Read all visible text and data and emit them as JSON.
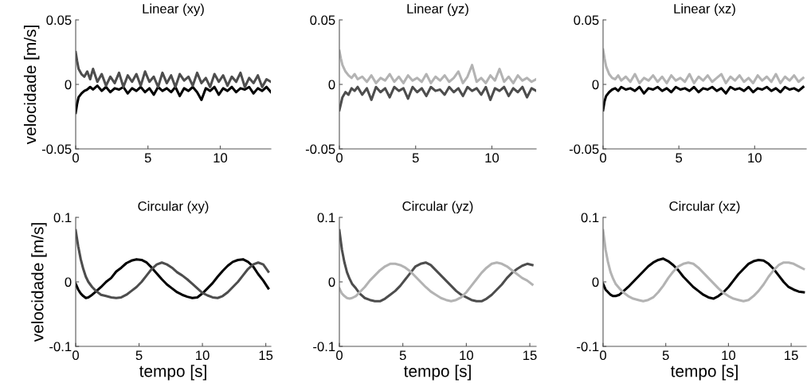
{
  "chart_data": [
    {
      "type": "line",
      "title": "Linear (xy)",
      "ylabel": "velocidade [m/s]",
      "xlim": [
        0,
        13.5
      ],
      "ylim": [
        -0.05,
        0.05
      ],
      "xticks": [
        0,
        5,
        10
      ],
      "yticks": [
        -0.05,
        0,
        0.05
      ],
      "grid": false,
      "x": [
        0,
        0.1,
        0.2,
        0.4,
        0.6,
        0.8,
        1.0,
        1.2,
        1.5,
        1.8,
        2.1,
        2.4,
        2.7,
        3.0,
        3.3,
        3.6,
        3.9,
        4.2,
        4.5,
        4.8,
        5.1,
        5.4,
        5.7,
        6.0,
        6.3,
        6.6,
        6.9,
        7.2,
        7.5,
        7.8,
        8.1,
        8.4,
        8.7,
        9.0,
        9.3,
        9.6,
        9.9,
        10.2,
        10.5,
        10.8,
        11.1,
        11.4,
        11.7,
        12.0,
        12.3,
        12.6,
        12.9,
        13.2,
        13.5
      ],
      "series": [
        {
          "color": "#000000",
          "values": [
            -0.022,
            -0.015,
            -0.01,
            -0.007,
            -0.005,
            -0.004,
            -0.002,
            -0.004,
            -0.001,
            -0.005,
            -0.002,
            -0.006,
            -0.003,
            -0.004,
            -0.002,
            -0.007,
            -0.003,
            -0.005,
            -0.002,
            -0.006,
            -0.003,
            -0.008,
            -0.002,
            -0.005,
            -0.003,
            -0.006,
            -0.002,
            -0.009,
            -0.003,
            -0.005,
            -0.002,
            -0.006,
            -0.012,
            -0.003,
            -0.005,
            -0.002,
            -0.008,
            -0.003,
            -0.005,
            -0.002,
            -0.006,
            -0.003,
            -0.004,
            -0.002,
            -0.007,
            -0.003,
            -0.005,
            -0.002,
            -0.006
          ]
        },
        {
          "color": "#4d4d4d",
          "values": [
            0.025,
            0.018,
            0.012,
            0.008,
            0.006,
            0.01,
            0.004,
            0.012,
            0.002,
            0.008,
            -0.001,
            0.006,
            0.001,
            0.009,
            -0.002,
            0.007,
            0.002,
            0.008,
            -0.001,
            0.01,
            0.002,
            0.006,
            -0.002,
            0.009,
            0.001,
            0.007,
            -0.002,
            0.008,
            0.003,
            0.006,
            -0.001,
            0.009,
            0.001,
            0.005,
            -0.002,
            0.008,
            0.002,
            0.007,
            -0.001,
            0.006,
            0.002,
            0.009,
            -0.002,
            0.005,
            0.001,
            0.007,
            -0.002,
            0.004,
            0.002
          ]
        }
      ]
    },
    {
      "type": "line",
      "title": "Linear (yz)",
      "xlim": [
        0,
        12.9
      ],
      "ylim": [
        -0.05,
        0.05
      ],
      "xticks": [
        0,
        5,
        10
      ],
      "yticks": [
        -0.05,
        0,
        0.05
      ],
      "grid": false,
      "x": [
        0,
        0.1,
        0.2,
        0.4,
        0.6,
        0.8,
        1.0,
        1.2,
        1.5,
        1.8,
        2.1,
        2.4,
        2.7,
        3.0,
        3.3,
        3.6,
        3.9,
        4.2,
        4.5,
        4.8,
        5.1,
        5.4,
        5.7,
        6.0,
        6.3,
        6.6,
        6.9,
        7.2,
        7.5,
        7.8,
        8.1,
        8.4,
        8.7,
        9.0,
        9.3,
        9.6,
        9.9,
        10.2,
        10.5,
        10.8,
        11.1,
        11.4,
        11.7,
        12.0,
        12.3,
        12.6,
        12.9
      ],
      "series": [
        {
          "color": "#4d4d4d",
          "values": [
            -0.02,
            -0.015,
            -0.01,
            -0.006,
            -0.008,
            -0.003,
            -0.005,
            -0.002,
            -0.008,
            -0.003,
            -0.012,
            -0.002,
            -0.006,
            -0.003,
            -0.01,
            -0.002,
            -0.005,
            -0.003,
            -0.011,
            -0.002,
            -0.006,
            -0.003,
            -0.009,
            -0.002,
            -0.005,
            -0.004,
            -0.008,
            -0.002,
            -0.006,
            -0.003,
            -0.009,
            -0.002,
            -0.005,
            -0.003,
            -0.008,
            -0.002,
            -0.012,
            -0.003,
            -0.005,
            -0.002,
            -0.009,
            -0.003,
            -0.006,
            -0.002,
            -0.01,
            -0.003,
            -0.005
          ]
        },
        {
          "color": "#b3b3b3",
          "values": [
            0.026,
            0.02,
            0.015,
            0.01,
            0.007,
            0.005,
            0.008,
            0.004,
            0.006,
            0.002,
            0.007,
            0.001,
            0.005,
            0.003,
            0.008,
            0.002,
            0.006,
            0.001,
            0.007,
            0.003,
            0.005,
            0.002,
            0.008,
            0.001,
            0.006,
            0.003,
            0.007,
            0.002,
            0.005,
            0.01,
            0.001,
            0.006,
            0.015,
            0.002,
            0.005,
            0.001,
            0.007,
            0.003,
            0.012,
            0.002,
            0.006,
            0.001,
            0.007,
            0.003,
            0.005,
            0.002,
            0.004
          ]
        }
      ]
    },
    {
      "type": "line",
      "title": "Linear (xz)",
      "xlim": [
        0,
        13.4
      ],
      "ylim": [
        -0.05,
        0.05
      ],
      "xticks": [
        0,
        5,
        10
      ],
      "yticks": [
        -0.05,
        0,
        0.05
      ],
      "grid": false,
      "x": [
        0,
        0.1,
        0.2,
        0.4,
        0.6,
        0.8,
        1.0,
        1.2,
        1.5,
        1.8,
        2.1,
        2.4,
        2.7,
        3.0,
        3.3,
        3.6,
        3.9,
        4.2,
        4.5,
        4.8,
        5.1,
        5.4,
        5.7,
        6.0,
        6.3,
        6.6,
        6.9,
        7.2,
        7.5,
        7.8,
        8.1,
        8.4,
        8.7,
        9.0,
        9.3,
        9.6,
        9.9,
        10.2,
        10.5,
        10.8,
        11.1,
        11.4,
        11.7,
        12.0,
        12.3,
        12.6,
        12.9,
        13.2
      ],
      "series": [
        {
          "color": "#000000",
          "values": [
            -0.02,
            -0.013,
            -0.009,
            -0.006,
            -0.004,
            -0.003,
            -0.005,
            -0.002,
            -0.004,
            -0.003,
            -0.005,
            -0.002,
            -0.007,
            -0.003,
            -0.004,
            -0.002,
            -0.005,
            -0.003,
            -0.006,
            -0.002,
            -0.004,
            -0.003,
            -0.005,
            -0.002,
            -0.006,
            -0.003,
            -0.004,
            -0.002,
            -0.005,
            -0.003,
            -0.007,
            -0.002,
            -0.004,
            -0.003,
            -0.005,
            -0.002,
            -0.006,
            -0.003,
            -0.004,
            -0.002,
            -0.005,
            -0.003,
            -0.006,
            -0.002,
            -0.004,
            -0.003,
            -0.005,
            -0.002
          ]
        },
        {
          "color": "#b3b3b3",
          "values": [
            0.027,
            0.02,
            0.014,
            0.008,
            0.005,
            0.004,
            0.007,
            0.003,
            0.006,
            0.002,
            0.008,
            0.001,
            0.005,
            0.003,
            0.007,
            0.002,
            0.006,
            0.001,
            0.007,
            0.003,
            0.005,
            0.002,
            0.008,
            0.001,
            0.006,
            0.003,
            0.007,
            0.002,
            0.005,
            0.008,
            0.001,
            0.006,
            0.003,
            0.007,
            0.002,
            0.005,
            0.001,
            0.007,
            0.003,
            0.006,
            0.002,
            0.008,
            0.001,
            0.006,
            0.003,
            0.007,
            0.002,
            0.005
          ]
        }
      ]
    },
    {
      "type": "line",
      "title": "Circular (xy)",
      "ylabel": "velocidade [m/s]",
      "xlabel": "tempo [s]",
      "xlim": [
        0,
        15.4
      ],
      "ylim": [
        -0.1,
        0.1
      ],
      "xticks": [
        0,
        5,
        10,
        15
      ],
      "yticks": [
        -0.1,
        0,
        0.1
      ],
      "grid": false,
      "x": [
        0,
        0.2,
        0.4,
        0.6,
        0.8,
        1.0,
        1.3,
        1.6,
        2.0,
        2.4,
        2.8,
        3.2,
        3.6,
        4.0,
        4.4,
        4.8,
        5.2,
        5.6,
        6.0,
        6.4,
        6.8,
        7.2,
        7.6,
        8.0,
        8.4,
        8.8,
        9.2,
        9.6,
        10.0,
        10.4,
        10.8,
        11.2,
        11.6,
        12.0,
        12.4,
        12.8,
        13.2,
        13.6,
        14.0,
        14.4,
        14.8,
        15.2
      ],
      "series": [
        {
          "color": "#000000",
          "values": [
            -0.003,
            -0.012,
            -0.018,
            -0.022,
            -0.025,
            -0.024,
            -0.02,
            -0.015,
            -0.008,
            0.0,
            0.006,
            0.016,
            0.022,
            0.029,
            0.033,
            0.035,
            0.034,
            0.03,
            0.022,
            0.013,
            0.004,
            -0.004,
            -0.01,
            -0.016,
            -0.02,
            -0.023,
            -0.025,
            -0.024,
            -0.018,
            -0.01,
            -0.002,
            0.008,
            0.017,
            0.025,
            0.031,
            0.034,
            0.035,
            0.031,
            0.024,
            0.012,
            0.002,
            -0.01
          ]
        },
        {
          "color": "#4d4d4d",
          "values": [
            0.08,
            0.055,
            0.035,
            0.02,
            0.008,
            0.0,
            -0.008,
            -0.014,
            -0.02,
            -0.022,
            -0.024,
            -0.025,
            -0.024,
            -0.02,
            -0.014,
            -0.008,
            0.0,
            0.01,
            0.02,
            0.027,
            0.03,
            0.027,
            0.022,
            0.015,
            0.01,
            0.004,
            -0.003,
            -0.01,
            -0.017,
            -0.021,
            -0.024,
            -0.025,
            -0.022,
            -0.016,
            -0.008,
            0.0,
            0.01,
            0.02,
            0.027,
            0.03,
            0.027,
            0.016
          ]
        }
      ]
    },
    {
      "type": "line",
      "title": "Circular (yz)",
      "xlabel": "tempo [s]",
      "xlim": [
        0,
        15.5
      ],
      "ylim": [
        -0.1,
        0.1
      ],
      "xticks": [
        0,
        5,
        10,
        15
      ],
      "yticks": [
        -0.1,
        0,
        0.1
      ],
      "grid": false,
      "x": [
        0,
        0.2,
        0.4,
        0.6,
        0.8,
        1.0,
        1.3,
        1.6,
        2.0,
        2.4,
        2.8,
        3.2,
        3.6,
        4.0,
        4.4,
        4.8,
        5.2,
        5.6,
        6.0,
        6.4,
        6.8,
        7.2,
        7.6,
        8.0,
        8.4,
        8.8,
        9.2,
        9.6,
        10.0,
        10.4,
        10.8,
        11.2,
        11.6,
        12.0,
        12.4,
        12.8,
        13.2,
        13.6,
        14.0,
        14.4,
        14.8,
        15.2
      ],
      "series": [
        {
          "color": "#4d4d4d",
          "values": [
            0.08,
            0.05,
            0.03,
            0.015,
            0.005,
            -0.003,
            -0.01,
            -0.018,
            -0.025,
            -0.028,
            -0.03,
            -0.03,
            -0.026,
            -0.02,
            -0.014,
            -0.006,
            0.004,
            0.014,
            0.024,
            0.028,
            0.03,
            0.026,
            0.018,
            0.01,
            0.002,
            -0.006,
            -0.014,
            -0.02,
            -0.024,
            -0.028,
            -0.03,
            -0.03,
            -0.026,
            -0.02,
            -0.012,
            -0.004,
            0.006,
            0.014,
            0.02,
            0.025,
            0.028,
            0.026
          ]
        },
        {
          "color": "#b3b3b3",
          "values": [
            -0.01,
            -0.018,
            -0.022,
            -0.025,
            -0.026,
            -0.025,
            -0.022,
            -0.016,
            -0.008,
            0.002,
            0.01,
            0.018,
            0.024,
            0.028,
            0.028,
            0.026,
            0.022,
            0.016,
            0.008,
            0.0,
            -0.008,
            -0.015,
            -0.02,
            -0.025,
            -0.028,
            -0.03,
            -0.028,
            -0.024,
            -0.016,
            -0.006,
            0.004,
            0.014,
            0.022,
            0.028,
            0.03,
            0.028,
            0.024,
            0.018,
            0.012,
            0.006,
            0.002,
            -0.004
          ]
        }
      ]
    },
    {
      "type": "line",
      "title": "Circular (xz)",
      "xlabel": "tempo [s]",
      "xlim": [
        0,
        16.2
      ],
      "ylim": [
        -0.1,
        0.1
      ],
      "xticks": [
        0,
        5,
        10,
        15
      ],
      "yticks": [
        -0.1,
        0,
        0.1
      ],
      "grid": false,
      "x": [
        0,
        0.2,
        0.4,
        0.6,
        0.8,
        1.0,
        1.3,
        1.6,
        2.0,
        2.4,
        2.8,
        3.2,
        3.6,
        4.0,
        4.4,
        4.8,
        5.2,
        5.6,
        6.0,
        6.4,
        6.8,
        7.2,
        7.6,
        8.0,
        8.4,
        8.8,
        9.2,
        9.6,
        10.0,
        10.4,
        10.8,
        11.2,
        11.6,
        12.0,
        12.4,
        12.8,
        13.2,
        13.6,
        14.0,
        14.4,
        14.8,
        15.2,
        15.6,
        16.0
      ],
      "series": [
        {
          "color": "#000000",
          "values": [
            -0.003,
            -0.012,
            -0.016,
            -0.02,
            -0.022,
            -0.022,
            -0.02,
            -0.015,
            -0.008,
            0.0,
            0.008,
            0.016,
            0.024,
            0.03,
            0.034,
            0.036,
            0.032,
            0.026,
            0.018,
            0.008,
            0.0,
            -0.008,
            -0.014,
            -0.02,
            -0.024,
            -0.026,
            -0.022,
            -0.016,
            -0.008,
            0.002,
            0.012,
            0.02,
            0.028,
            0.032,
            0.034,
            0.033,
            0.028,
            0.02,
            0.01,
            0.0,
            -0.008,
            -0.012,
            -0.015,
            -0.016
          ]
        },
        {
          "color": "#b3b3b3",
          "values": [
            0.08,
            0.05,
            0.03,
            0.015,
            0.005,
            -0.003,
            -0.01,
            -0.016,
            -0.022,
            -0.026,
            -0.028,
            -0.03,
            -0.028,
            -0.024,
            -0.016,
            -0.006,
            0.006,
            0.016,
            0.024,
            0.028,
            0.03,
            0.028,
            0.022,
            0.014,
            0.006,
            -0.002,
            -0.01,
            -0.017,
            -0.022,
            -0.026,
            -0.028,
            -0.03,
            -0.028,
            -0.022,
            -0.014,
            -0.004,
            0.008,
            0.018,
            0.026,
            0.03,
            0.03,
            0.028,
            0.024,
            0.02
          ]
        }
      ]
    }
  ]
}
